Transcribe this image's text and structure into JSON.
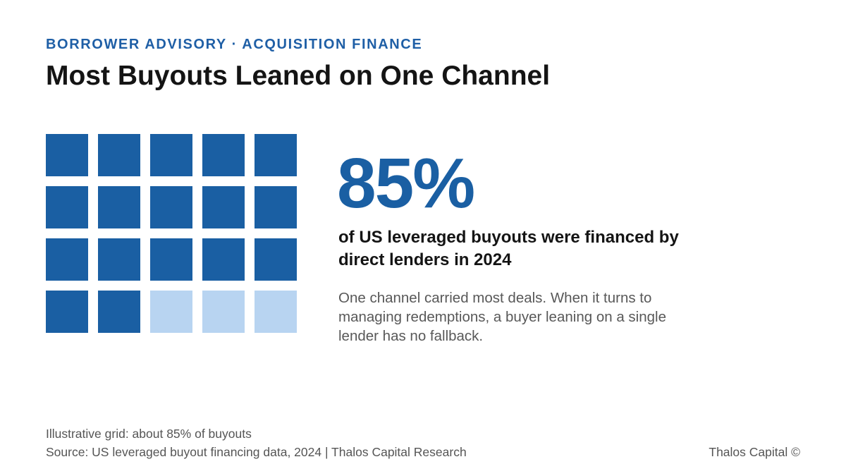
{
  "header": {
    "eyebrow": "BORROWER ADVISORY · ACQUISITION FINANCE",
    "title": "Most Buyouts Leaned on One Channel"
  },
  "stat": {
    "value": "85%",
    "label": "of US leveraged buyouts were financed by direct lenders in 2024",
    "description": "One channel carried most deals. When it turns to managing redemptions, a buyer leaning on a single lender has no fallback."
  },
  "footer": {
    "note": "Illustrative grid: about 85% of buyouts",
    "source": "Source: US leveraged buyout financing data, 2024 | Thalos Capital Research",
    "brand": "Thalos Capital ©"
  },
  "colors": {
    "filled": "#1a5fa3",
    "empty": "#b8d4f1",
    "accent": "#1f5fa6"
  },
  "chart_data": {
    "type": "waffle",
    "rows": 4,
    "columns": 5,
    "total_cells": 20,
    "filled_cells": 17,
    "percent": 85
  }
}
